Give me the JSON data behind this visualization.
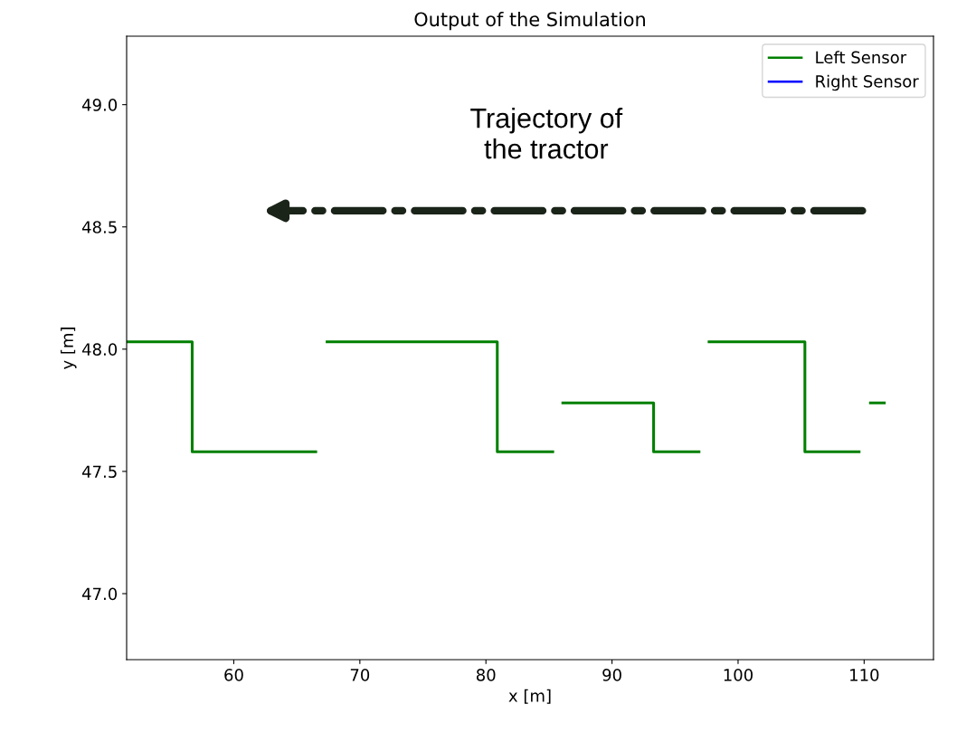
{
  "chart_data": {
    "type": "line",
    "title": "Output of the Simulation",
    "xlabel": "x [m]",
    "ylabel": "y [m]",
    "x": [
      51.5,
      56.7,
      56.7,
      66.5,
      66.9,
      67.4,
      80.9,
      80.9,
      85.3,
      85.7,
      86.1,
      93.3,
      93.3,
      96.9,
      97.3,
      97.7,
      105.3,
      105.3,
      109.6,
      110.0,
      110.5,
      111.6
    ],
    "series": [
      {
        "name": "Left Sensor",
        "color": "#008000",
        "values": [
          48.03,
          48.03,
          47.58,
          47.58,
          null,
          48.03,
          48.03,
          47.58,
          47.58,
          null,
          47.78,
          47.78,
          47.58,
          47.58,
          null,
          48.03,
          48.03,
          47.58,
          47.58,
          null,
          47.78,
          47.78
        ]
      },
      {
        "name": "Right Sensor",
        "color": "#0000ff",
        "values": [
          null,
          null,
          null,
          null,
          null,
          null,
          null,
          null,
          null,
          null,
          null,
          null,
          null,
          null,
          null,
          null,
          null,
          null,
          null,
          null,
          null,
          null
        ]
      }
    ],
    "annotations": [
      "Trajectory of\nthe tractor"
    ],
    "xlim": [
      51.5,
      115.5
    ],
    "xticks": [
      60,
      70,
      80,
      90,
      100,
      110
    ],
    "ylim": [
      46.73,
      49.28
    ],
    "yticks": [
      {
        "value": 47.0,
        "label": "47.0"
      },
      {
        "value": 47.5,
        "label": "47.5"
      },
      {
        "value": 48.0,
        "label": "48.0"
      },
      {
        "value": 48.5,
        "label": "48.5"
      },
      {
        "value": 49.0,
        "label": "49.0"
      }
    ],
    "legend": "top right",
    "grid": false
  }
}
